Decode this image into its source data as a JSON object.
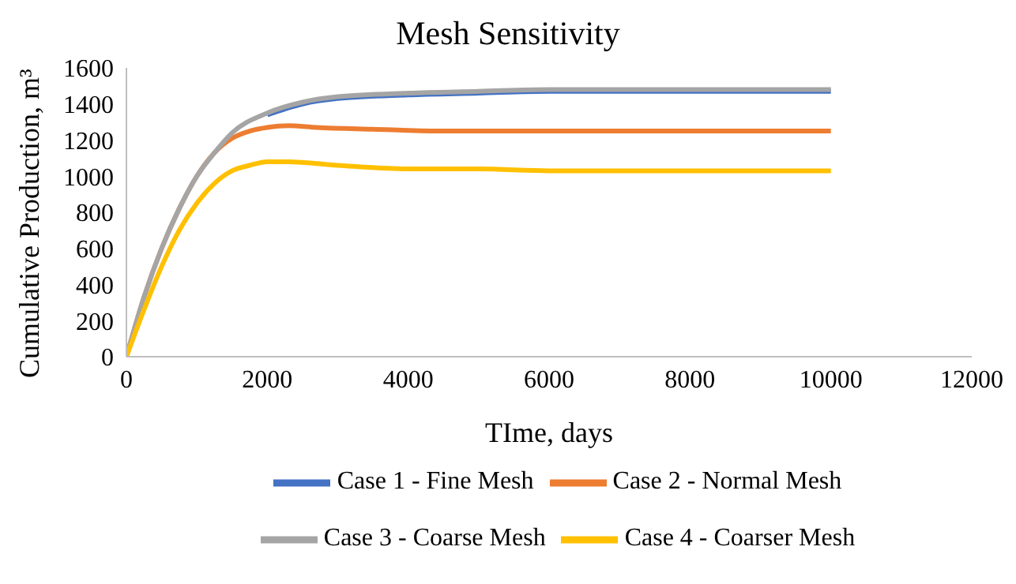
{
  "chart_data": {
    "type": "line",
    "title": "Mesh Sensitivity",
    "xlabel": "TIme, days",
    "ylabel": "Cumulative Production, m³",
    "xlim": [
      0,
      12000
    ],
    "xticks": [
      0,
      2000,
      4000,
      6000,
      8000,
      10000,
      12000
    ],
    "ylim": [
      0,
      1600
    ],
    "yticks": [
      0,
      200,
      400,
      600,
      800,
      1000,
      1200,
      1400,
      1600
    ],
    "grid": false,
    "legend": "bottom",
    "marker": "none",
    "line_style": "solid",
    "series": [
      {
        "name": "Case 1 - Fine Mesh",
        "color": "#4472c4",
        "x": [
          2000,
          2500,
          3000,
          4000,
          5000,
          6000,
          8000,
          10000
        ],
        "values": [
          1340,
          1400,
          1430,
          1450,
          1460,
          1470,
          1470,
          1470
        ]
      },
      {
        "name": "Case 2 - Normal Mesh",
        "color": "#ed7d31",
        "x": [
          0,
          250,
          500,
          750,
          1000,
          1250,
          1500,
          1750,
          2000,
          2300,
          2700,
          3500,
          4500,
          6000,
          10000
        ],
        "values": [
          0,
          330,
          600,
          820,
          1000,
          1130,
          1210,
          1250,
          1270,
          1280,
          1270,
          1260,
          1250,
          1250,
          1250
        ]
      },
      {
        "name": "Case 3 - Coarse Mesh",
        "color": "#a5a5a5",
        "x": [
          0,
          250,
          500,
          750,
          1000,
          1250,
          1500,
          2000,
          2500,
          3000,
          4000,
          5000,
          6000,
          8000,
          10000
        ],
        "values": [
          0,
          330,
          600,
          820,
          1000,
          1130,
          1240,
          1350,
          1410,
          1440,
          1460,
          1470,
          1480,
          1480,
          1480
        ]
      },
      {
        "name": "Case 4 - Coarser Mesh",
        "color": "#ffc000",
        "x": [
          0,
          250,
          500,
          750,
          1000,
          1250,
          1500,
          1750,
          2000,
          2300,
          3000,
          4000,
          5000,
          6000,
          10000
        ],
        "values": [
          0,
          260,
          500,
          700,
          850,
          960,
          1030,
          1060,
          1080,
          1080,
          1060,
          1040,
          1040,
          1030,
          1030
        ]
      }
    ]
  }
}
